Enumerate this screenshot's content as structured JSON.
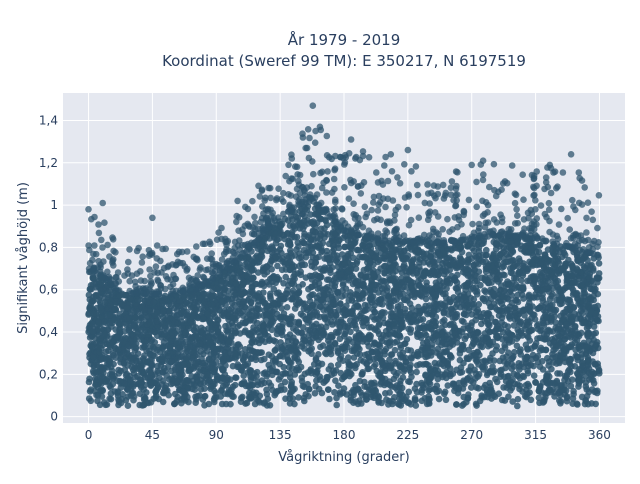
{
  "chart_data": {
    "type": "scatter",
    "title_lines": [
      "År 1979 - 2019",
      "Koordinat (Sweref 99 TM): E 350217, N 6197519"
    ],
    "xlabel": "Vågriktning (grader)",
    "ylabel": "Signifikant våghöjd (m)",
    "xlim": [
      -18,
      378
    ],
    "ylim": [
      -0.03,
      1.53
    ],
    "x_ticks": [
      0,
      45,
      90,
      135,
      180,
      225,
      270,
      315,
      360
    ],
    "x_tick_labels": [
      "0",
      "45",
      "90",
      "135",
      "180",
      "225",
      "270",
      "315",
      "360"
    ],
    "y_ticks": [
      0,
      0.2,
      0.4,
      0.6,
      0.8,
      1.0,
      1.2,
      1.4
    ],
    "y_tick_labels": [
      "0",
      "0,2",
      "0,4",
      "0,6",
      "0,8",
      "1",
      "1,2",
      "1,4"
    ],
    "grid": true,
    "legend": "none",
    "marker_color": "#2f566f",
    "plot_bg": "#e5e8f0",
    "envelope": {
      "x": [
        0,
        10,
        20,
        30,
        45,
        60,
        75,
        90,
        105,
        120,
        135,
        150,
        158,
        165,
        180,
        200,
        225,
        250,
        270,
        290,
        315,
        340,
        360
      ],
      "y_max_dense": [
        0.7,
        0.66,
        0.6,
        0.58,
        0.58,
        0.58,
        0.6,
        0.66,
        0.74,
        0.84,
        0.95,
        1.0,
        1.02,
        0.98,
        0.88,
        0.84,
        0.82,
        0.82,
        0.84,
        0.86,
        0.84,
        0.8,
        0.76
      ],
      "y_max_sparse": [
        0.95,
        0.95,
        0.85,
        0.8,
        0.82,
        0.8,
        0.8,
        0.88,
        1.0,
        1.1,
        1.15,
        1.35,
        1.47,
        1.38,
        1.28,
        1.25,
        1.25,
        1.15,
        1.2,
        1.2,
        1.2,
        1.22,
        1.05
      ],
      "y_min": 0.05
    },
    "outliers": [
      {
        "x": 158,
        "y": 1.47
      },
      {
        "x": 163,
        "y": 1.37
      },
      {
        "x": 160,
        "y": 1.35
      },
      {
        "x": 154,
        "y": 1.27
      },
      {
        "x": 185,
        "y": 1.31
      },
      {
        "x": 225,
        "y": 1.26
      },
      {
        "x": 213,
        "y": 1.24
      },
      {
        "x": 278,
        "y": 1.21
      },
      {
        "x": 270,
        "y": 1.19
      },
      {
        "x": 340,
        "y": 1.24
      },
      {
        "x": 325,
        "y": 1.19
      },
      {
        "x": 45,
        "y": 0.94
      },
      {
        "x": 10,
        "y": 1.01
      },
      {
        "x": 0,
        "y": 0.98
      },
      {
        "x": 105,
        "y": 1.02
      },
      {
        "x": 128,
        "y": 1.08
      }
    ]
  }
}
